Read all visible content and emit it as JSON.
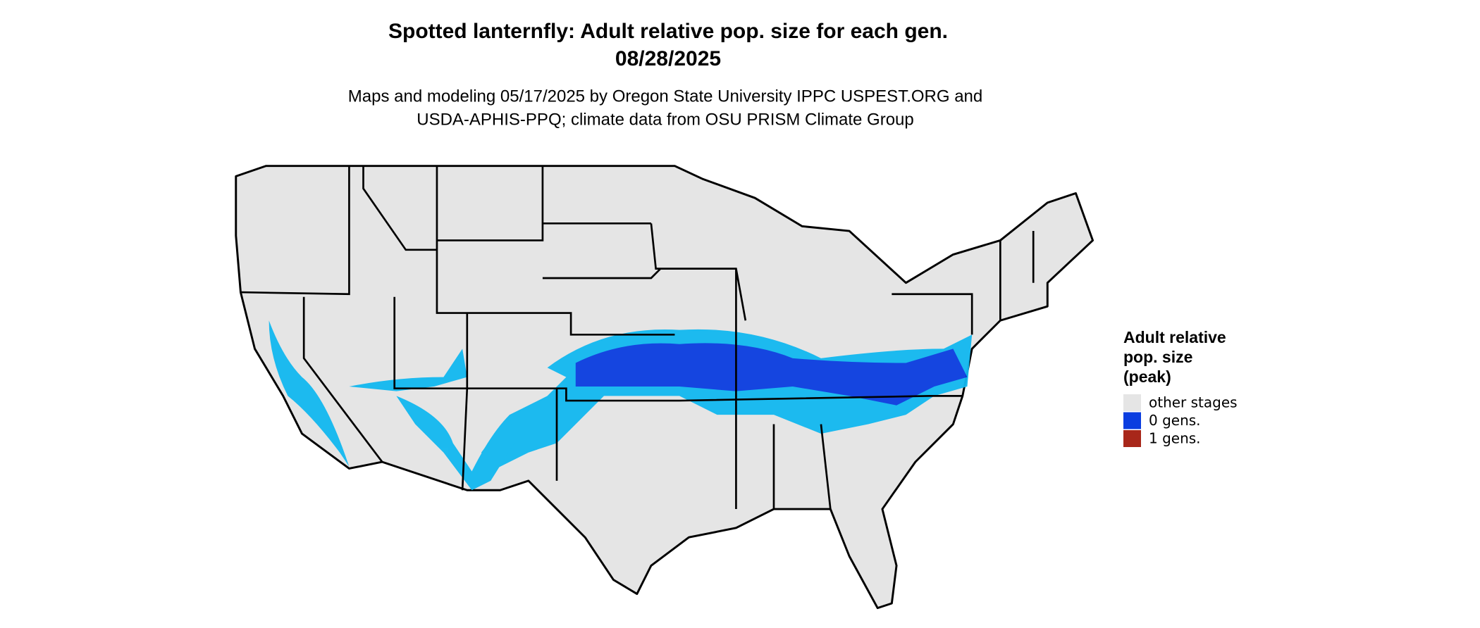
{
  "header": {
    "title": "Spotted lanternfly: Adult relative pop. size for each gen.",
    "date": "08/28/2025",
    "subtitle": [
      "Maps and modeling 05/17/2025 by Oregon State University IPPC USPEST.ORG and",
      "USDA-APHIS-PPQ; climate data from OSU PRISM Climate Group"
    ]
  },
  "legend": {
    "title": [
      "Adult relative",
      "pop. size",
      "(peak)"
    ],
    "items": [
      {
        "label": "other stages",
        "color": "#e5e5e5"
      },
      {
        "label": "0 gens.",
        "color": "#0a3de0"
      },
      {
        "label": "1 gens.",
        "color": "#a8271a"
      }
    ]
  }
}
